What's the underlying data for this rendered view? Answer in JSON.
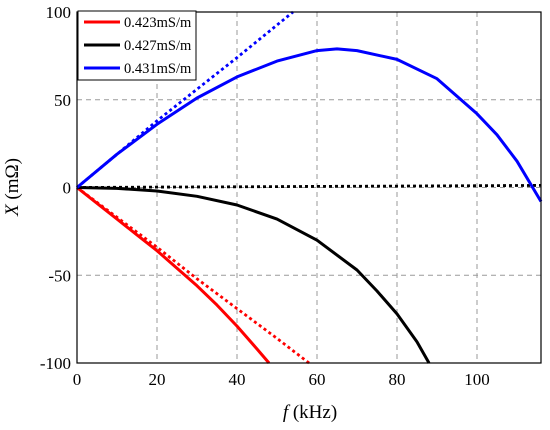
{
  "chart_data": {
    "type": "line",
    "title": "",
    "xlabel": {
      "symbol": "f",
      "unit": " (kHz)"
    },
    "ylabel": {
      "symbol": "X",
      "unit": " (mΩ)"
    },
    "xlim": [
      0,
      116
    ],
    "ylim": [
      -100,
      100
    ],
    "xticks": [
      0,
      20,
      40,
      60,
      80,
      100
    ],
    "yticks": [
      -100,
      -50,
      0,
      50,
      100
    ],
    "grid": true,
    "legend_position": "top-left",
    "series": [
      {
        "name": "0.423mS/m",
        "color": "#ff0000",
        "style": "solid",
        "x": [
          0,
          5,
          10,
          15,
          20,
          25,
          30,
          35,
          40,
          45,
          48
        ],
        "y": [
          0,
          -9,
          -18,
          -27,
          -36,
          -46,
          -56,
          -67,
          -79,
          -92,
          -100
        ]
      },
      {
        "name": "",
        "color": "#ff0000",
        "style": "dotted",
        "x": [
          0,
          10,
          20,
          30,
          40,
          50,
          58
        ],
        "y": [
          0,
          -17,
          -34,
          -52,
          -69,
          -86,
          -100
        ]
      },
      {
        "name": "0.427mS/m",
        "color": "#000000",
        "style": "solid",
        "x": [
          0,
          10,
          20,
          30,
          40,
          50,
          60,
          70,
          75,
          80,
          85,
          88
        ],
        "y": [
          0,
          -0.5,
          -2,
          -5,
          -10,
          -18,
          -30,
          -47,
          -59,
          -72,
          -88,
          -100
        ]
      },
      {
        "name": "",
        "color": "#000000",
        "style": "dotted",
        "x": [
          0,
          20,
          40,
          60,
          80,
          100,
          116
        ],
        "y": [
          0,
          0.2,
          0.4,
          0.6,
          0.8,
          1,
          1.2
        ]
      },
      {
        "name": "0.431mS/m",
        "color": "#0000ff",
        "style": "solid",
        "x": [
          0,
          10,
          20,
          30,
          40,
          50,
          60,
          65,
          70,
          80,
          90,
          100,
          105,
          110,
          116
        ],
        "y": [
          0,
          19,
          36,
          51,
          63,
          72,
          78,
          79,
          78,
          73,
          62,
          42,
          30,
          15,
          -8
        ]
      },
      {
        "name": "",
        "color": "#0000ff",
        "style": "dotted",
        "x": [
          0,
          10,
          20,
          30,
          40,
          54
        ],
        "y": [
          0,
          19,
          38,
          56,
          74,
          100
        ]
      }
    ]
  }
}
